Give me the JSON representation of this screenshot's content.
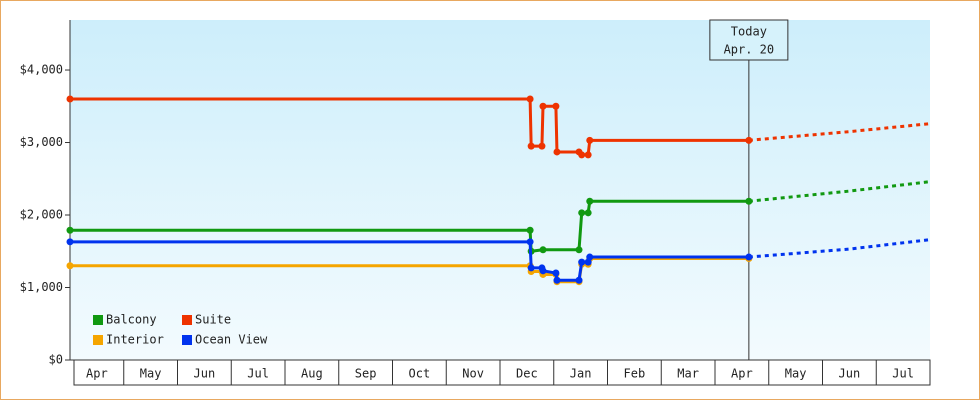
{
  "chart_data": {
    "type": "step-line",
    "xlim": [
      0,
      16
    ],
    "ylim": [
      0,
      4690
    ],
    "yticks": [
      {
        "value": 0,
        "label": "$0"
      },
      {
        "value": 1000,
        "label": "$1,000"
      },
      {
        "value": 2000,
        "label": "$2,000"
      },
      {
        "value": 3000,
        "label": "$3,000"
      },
      {
        "value": 4000,
        "label": "$4,000"
      }
    ],
    "xticks": [
      {
        "value": 0.5,
        "label": "Apr"
      },
      {
        "value": 1.5,
        "label": "May"
      },
      {
        "value": 2.5,
        "label": "Jun"
      },
      {
        "value": 3.5,
        "label": "Jul"
      },
      {
        "value": 4.5,
        "label": "Aug"
      },
      {
        "value": 5.5,
        "label": "Sep"
      },
      {
        "value": 6.5,
        "label": "Oct"
      },
      {
        "value": 7.5,
        "label": "Nov"
      },
      {
        "value": 8.5,
        "label": "Dec"
      },
      {
        "value": 9.5,
        "label": "Jan"
      },
      {
        "value": 10.5,
        "label": "Feb"
      },
      {
        "value": 11.5,
        "label": "Mar"
      },
      {
        "value": 12.5,
        "label": "Apr"
      },
      {
        "value": 13.5,
        "label": "May"
      },
      {
        "value": 14.5,
        "label": "Jun"
      },
      {
        "value": 15.5,
        "label": "Jul"
      }
    ],
    "annotation": {
      "x": 12.63,
      "lines": [
        "Today",
        "Apr. 20"
      ]
    },
    "series": [
      {
        "name": "Balcony",
        "color": "#119911",
        "x": [
          0,
          8.56,
          8.58,
          8.8,
          9.47,
          9.52,
          9.64,
          9.67,
          12.63
        ],
        "values": [
          1790,
          1790,
          1500,
          1520,
          1520,
          2030,
          2030,
          2190,
          2190
        ],
        "projection": {
          "x": [
            12.63,
            14.5,
            16
          ],
          "values": [
            2190,
            2330,
            2460
          ]
        }
      },
      {
        "name": "Suite",
        "color": "#ee3300",
        "x": [
          0,
          8.56,
          8.58,
          8.78,
          8.8,
          9.04,
          9.06,
          9.47,
          9.52,
          9.64,
          9.67,
          12.63
        ],
        "values": [
          3600,
          3600,
          2950,
          2950,
          3500,
          3500,
          2870,
          2870,
          2830,
          2830,
          3030,
          3030
        ],
        "projection": {
          "x": [
            12.63,
            14.5,
            16
          ],
          "values": [
            3030,
            3150,
            3260
          ]
        }
      },
      {
        "name": "Interior",
        "color": "#f5a500",
        "x": [
          0,
          8.56,
          8.58,
          8.78,
          8.8,
          9.04,
          9.06,
          9.47,
          9.52,
          9.64,
          9.67,
          12.63
        ],
        "values": [
          1300,
          1300,
          1220,
          1220,
          1180,
          1180,
          1080,
          1080,
          1320,
          1320,
          1400,
          1400
        ]
      },
      {
        "name": "Ocean View",
        "color": "#0033ee",
        "x": [
          0,
          8.56,
          8.58,
          8.78,
          8.8,
          9.04,
          9.06,
          9.47,
          9.52,
          9.64,
          9.67,
          12.63
        ],
        "values": [
          1630,
          1630,
          1270,
          1270,
          1230,
          1200,
          1100,
          1100,
          1350,
          1350,
          1420,
          1420
        ],
        "projection": {
          "x": [
            12.63,
            14.5,
            16
          ],
          "values": [
            1420,
            1530,
            1660
          ]
        }
      }
    ]
  }
}
